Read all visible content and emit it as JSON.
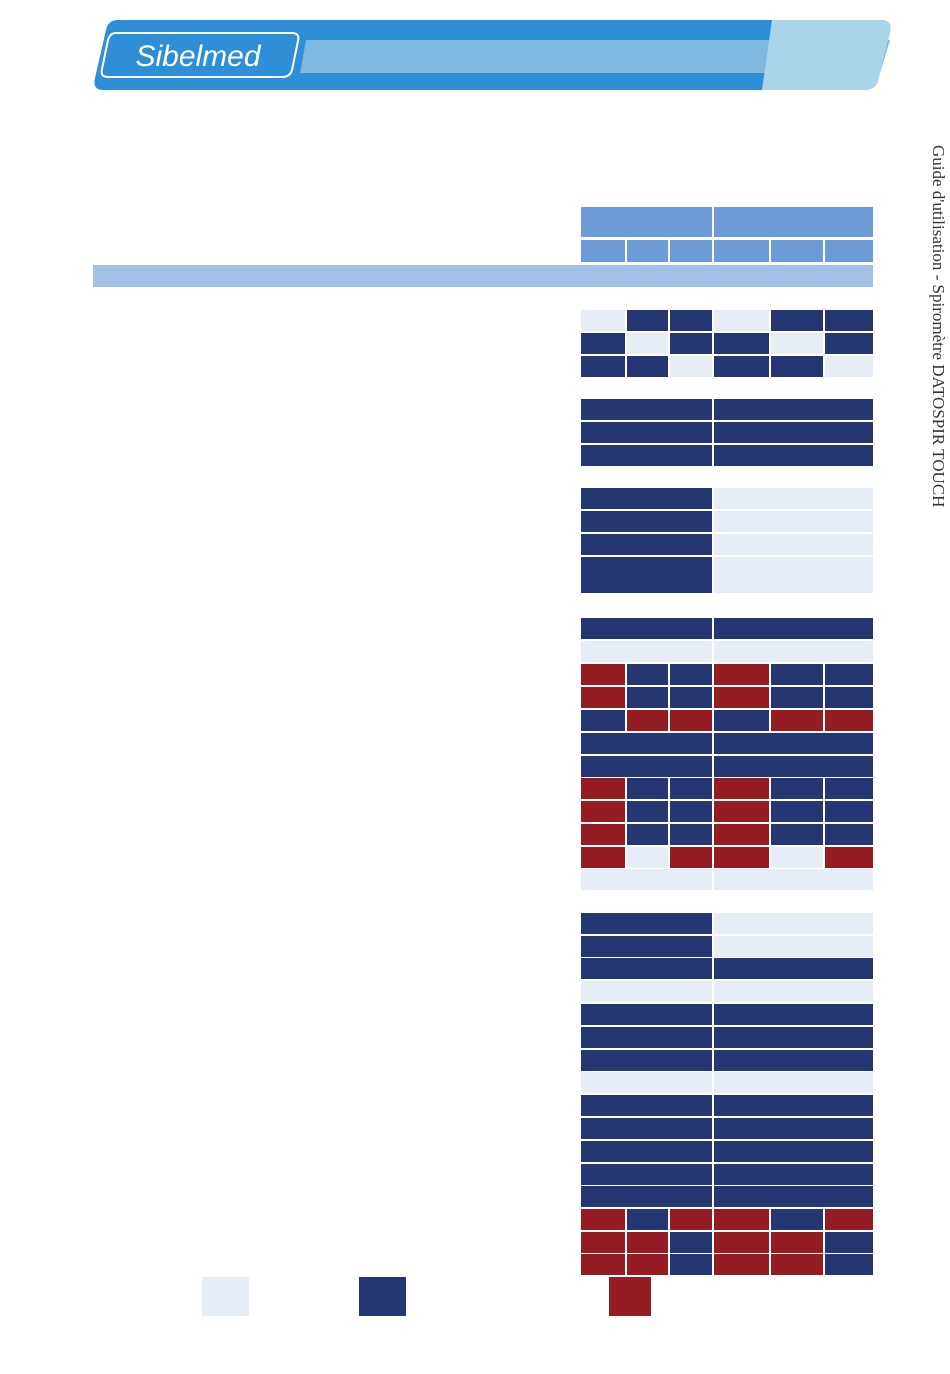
{
  "header": {
    "logo": "Sibelmed"
  },
  "side_text": "Guide d'utilisation - Spiromètre DATOSPIR TOUCH"
}
